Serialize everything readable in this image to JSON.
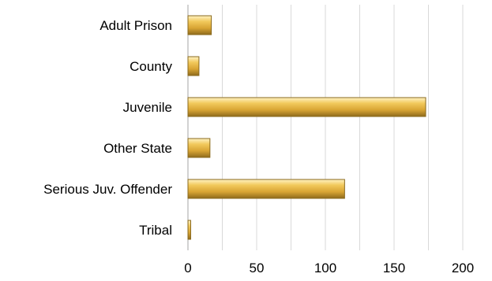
{
  "chart_data": {
    "type": "bar",
    "orientation": "horizontal",
    "categories": [
      "Adult Prison",
      "County",
      "Juvenile",
      "Other State",
      "Serious Juv. Offender",
      "Tribal"
    ],
    "values": [
      17,
      8,
      173,
      16,
      114,
      2
    ],
    "title": "",
    "xlabel": "",
    "ylabel": "",
    "xlim": [
      0,
      200
    ],
    "xticks": [
      "0",
      "50",
      "100",
      "150",
      "200"
    ],
    "grid": true,
    "legend": "none",
    "bar_color": "#e8b94a"
  }
}
